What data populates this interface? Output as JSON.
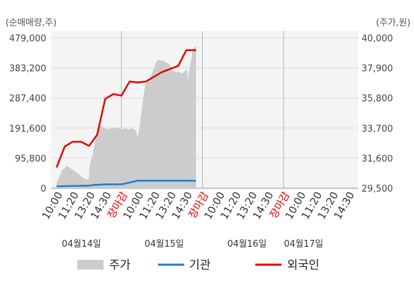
{
  "chart_data": {
    "type": "line",
    "left_axis_unit": "(순매매량,주)",
    "right_axis_unit": "(주가,원)",
    "left_ticks": [
      "479,000",
      "383,200",
      "287,400",
      "191,600",
      "95,800",
      "0"
    ],
    "right_ticks": [
      "40,000",
      "37,900",
      "35,800",
      "33,700",
      "31,600",
      "29,500"
    ],
    "ylim_left": [
      0,
      479000
    ],
    "ylim_right": [
      29500,
      40000
    ],
    "x_tick_labels": [
      "10:00",
      "11:20",
      "13:20",
      "14:30",
      "장마감",
      "10:00",
      "11:20",
      "13:20",
      "14:30",
      "장마감",
      "10:00",
      "11:20",
      "13:20",
      "14:30",
      "장마감",
      "10:00",
      "11:20",
      "13:20",
      "14:30"
    ],
    "x_tick_colors": [
      "#333333",
      "#333333",
      "#333333",
      "#333333",
      "#e60000",
      "#333333",
      "#333333",
      "#333333",
      "#333333",
      "#e60000",
      "#333333",
      "#333333",
      "#333333",
      "#333333",
      "#e60000",
      "#333333",
      "#333333",
      "#333333",
      "#333333"
    ],
    "date_labels": [
      "04월14일",
      "04월15일",
      "04월16일",
      "04월17일"
    ],
    "legend": [
      "주가",
      "기관",
      "외국인"
    ],
    "colors": {
      "price": "#cccccc",
      "institution": "#1a7fce",
      "foreign": "#e60000"
    },
    "price": [
      [
        0,
        29850
      ],
      [
        0.05,
        30000
      ],
      [
        0.1,
        30100
      ],
      [
        0.15,
        30200
      ],
      [
        0.2,
        30350
      ],
      [
        0.25,
        30500
      ],
      [
        0.3,
        30650
      ],
      [
        0.35,
        30750
      ],
      [
        0.4,
        30800
      ],
      [
        0.45,
        30850
      ],
      [
        0.5,
        30900
      ],
      [
        0.55,
        30950
      ],
      [
        0.6,
        31050
      ],
      [
        0.65,
        31050
      ],
      [
        0.7,
        31000
      ],
      [
        0.75,
        31000
      ],
      [
        0.8,
        30950
      ],
      [
        0.85,
        30900
      ],
      [
        0.9,
        30850
      ],
      [
        0.95,
        30800
      ],
      [
        1.0,
        30750
      ],
      [
        1.05,
        30800
      ],
      [
        1.1,
        30700
      ],
      [
        1.15,
        30650
      ],
      [
        1.2,
        30650
      ],
      [
        1.25,
        30600
      ],
      [
        1.3,
        30550
      ],
      [
        1.35,
        30500
      ],
      [
        1.4,
        30450
      ],
      [
        1.45,
        30400
      ],
      [
        1.5,
        30350
      ],
      [
        1.55,
        30300
      ],
      [
        1.6,
        30250
      ],
      [
        1.65,
        30200
      ],
      [
        1.7,
        30200
      ],
      [
        1.75,
        30150
      ],
      [
        1.8,
        30150
      ],
      [
        1.85,
        30100
      ],
      [
        1.9,
        30100
      ],
      [
        1.95,
        30100
      ],
      [
        2.0,
        30250
      ],
      [
        2.04,
        31000
      ],
      [
        2.1,
        31400
      ],
      [
        2.2,
        31700
      ],
      [
        2.3,
        32300
      ],
      [
        2.4,
        32900
      ],
      [
        2.5,
        33400
      ],
      [
        2.6,
        33700
      ],
      [
        2.7,
        33900
      ],
      [
        2.8,
        33850
      ],
      [
        2.9,
        33750
      ],
      [
        3.0,
        33700
      ],
      [
        3.1,
        33650
      ],
      [
        3.2,
        33600
      ],
      [
        3.3,
        33650
      ],
      [
        3.4,
        33700
      ],
      [
        3.5,
        33750
      ],
      [
        3.6,
        33700
      ],
      [
        3.7,
        33650
      ],
      [
        3.8,
        33700
      ],
      [
        3.9,
        33650
      ],
      [
        4.0,
        33600
      ],
      [
        4.1,
        33600
      ],
      [
        4.2,
        33650
      ],
      [
        4.3,
        33700
      ],
      [
        4.4,
        33600
      ],
      [
        4.5,
        33600
      ],
      [
        4.6,
        33650
      ],
      [
        4.7,
        33650
      ],
      [
        4.8,
        33600
      ],
      [
        4.9,
        33500
      ],
      [
        5.0,
        33000
      ],
      [
        5.05,
        33400
      ],
      [
        5.15,
        34000
      ],
      [
        5.3,
        35500
      ],
      [
        5.45,
        36600
      ],
      [
        5.6,
        37100
      ],
      [
        5.7,
        37000
      ],
      [
        5.8,
        37300
      ],
      [
        5.9,
        37600
      ],
      [
        6.0,
        37900
      ],
      [
        6.1,
        38200
      ],
      [
        6.2,
        38400
      ],
      [
        6.3,
        38500
      ],
      [
        6.4,
        38400
      ],
      [
        6.5,
        38450
      ],
      [
        6.6,
        38400
      ],
      [
        6.7,
        38300
      ],
      [
        6.8,
        38250
      ],
      [
        6.9,
        38200
      ],
      [
        7.0,
        38100
      ],
      [
        7.1,
        37800
      ],
      [
        7.2,
        37700
      ],
      [
        7.3,
        37600
      ],
      [
        7.4,
        37600
      ],
      [
        7.5,
        37650
      ],
      [
        7.6,
        37600
      ],
      [
        7.7,
        37500
      ],
      [
        7.8,
        37550
      ],
      [
        7.9,
        37650
      ],
      [
        8.0,
        37800
      ],
      [
        8.05,
        37700
      ],
      [
        8.1,
        37000
      ],
      [
        8.15,
        37500
      ],
      [
        8.25,
        38100
      ],
      [
        8.35,
        38800
      ],
      [
        8.45,
        39300
      ],
      [
        8.55,
        39400
      ],
      [
        8.6,
        39300
      ]
    ],
    "institution": [
      [
        0,
        6000
      ],
      [
        2.0,
        8000
      ],
      [
        2.3,
        10000
      ],
      [
        3.0,
        12000
      ],
      [
        4.0,
        12000
      ],
      [
        4.5,
        18000
      ],
      [
        5.0,
        24000
      ],
      [
        6.0,
        24000
      ],
      [
        7.0,
        24000
      ],
      [
        8.0,
        24000
      ],
      [
        8.3,
        23500
      ],
      [
        8.6,
        23000
      ]
    ],
    "foreign": [
      [
        0,
        66000
      ],
      [
        0.5,
        133000
      ],
      [
        1.0,
        148000
      ],
      [
        1.5,
        148000
      ],
      [
        2.0,
        135000
      ],
      [
        2.5,
        170000
      ],
      [
        3.0,
        285000
      ],
      [
        3.5,
        300000
      ],
      [
        4.0,
        295000
      ],
      [
        4.5,
        340000
      ],
      [
        5.0,
        337000
      ],
      [
        5.5,
        340000
      ],
      [
        6.0,
        355000
      ],
      [
        6.5,
        370000
      ],
      [
        7.0,
        380000
      ],
      [
        7.5,
        390000
      ],
      [
        8.0,
        440000
      ],
      [
        8.6,
        440000
      ]
    ]
  }
}
